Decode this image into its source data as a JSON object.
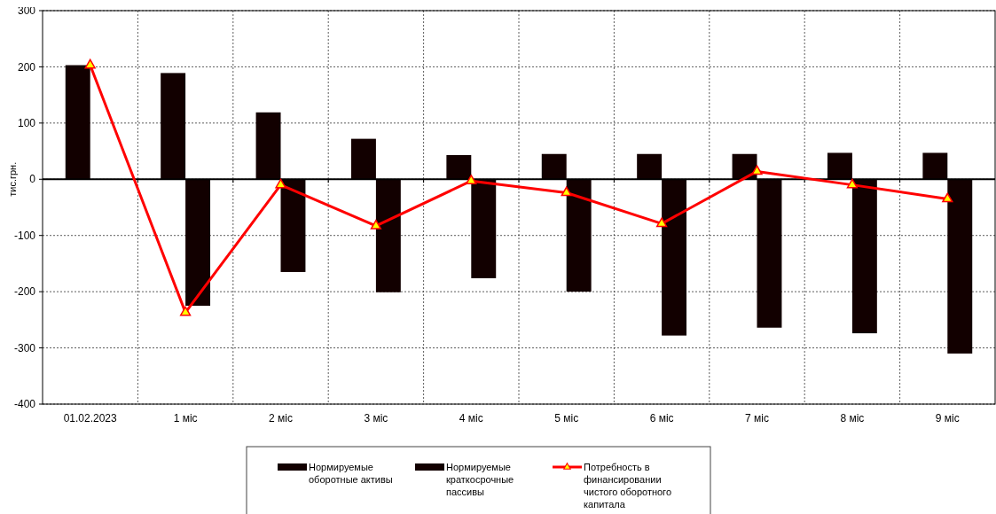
{
  "chart_data": {
    "type": "bar",
    "ylabel": "тис.грн.",
    "categories": [
      "01.02.2023",
      "1 міс",
      "2 міс",
      "3 міс",
      "4 міс",
      "5 міс",
      "6 міс",
      "7 міс",
      "8 міс",
      "9 міс"
    ],
    "series": [
      {
        "name": "Нормируемые оборотные активы",
        "color": "#120000",
        "values": [
          203,
          189,
          119,
          72,
          43,
          45,
          45,
          45,
          47,
          47
        ]
      },
      {
        "name": "Нормируемые краткосрочные пассивы",
        "color": "#120000",
        "values": [
          null,
          -225,
          -165,
          -201,
          -176,
          -200,
          -278,
          -264,
          -274,
          -310
        ]
      },
      {
        "name": "Потребность в финансировании чистого оборотного капитала",
        "type": "line",
        "color": "#ff0000",
        "marker": "triangle",
        "line_style": "solid",
        "values": [
          203,
          -237,
          -10,
          -83,
          -3,
          -24,
          -79,
          14,
          -10,
          -35
        ]
      }
    ],
    "ylim": [
      -400,
      300
    ],
    "yticks": [
      -400,
      -300,
      -200,
      -100,
      0,
      100,
      200,
      300
    ],
    "grid": true,
    "legend": "bottom"
  }
}
